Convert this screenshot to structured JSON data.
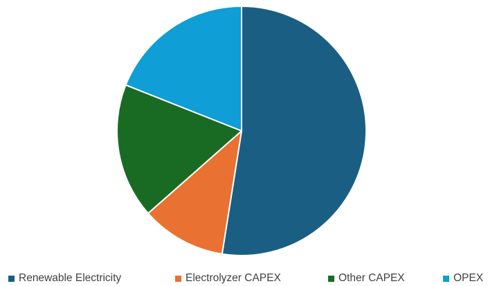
{
  "chart_data": {
    "type": "pie",
    "title": "",
    "legend_position": "bottom",
    "start_angle_deg": 0,
    "direction": "clockwise",
    "slices": [
      {
        "label": "Renewable Electricity",
        "value": 52.5,
        "color": "#1a5e83"
      },
      {
        "label": "Electrolyzer CAPEX",
        "value": 11.0,
        "color": "#e97132"
      },
      {
        "label": "Other CAPEX",
        "value": 17.5,
        "color": "#196b24"
      },
      {
        "label": "OPEX",
        "value": 19.0,
        "color": "#0f9ed5"
      }
    ]
  }
}
